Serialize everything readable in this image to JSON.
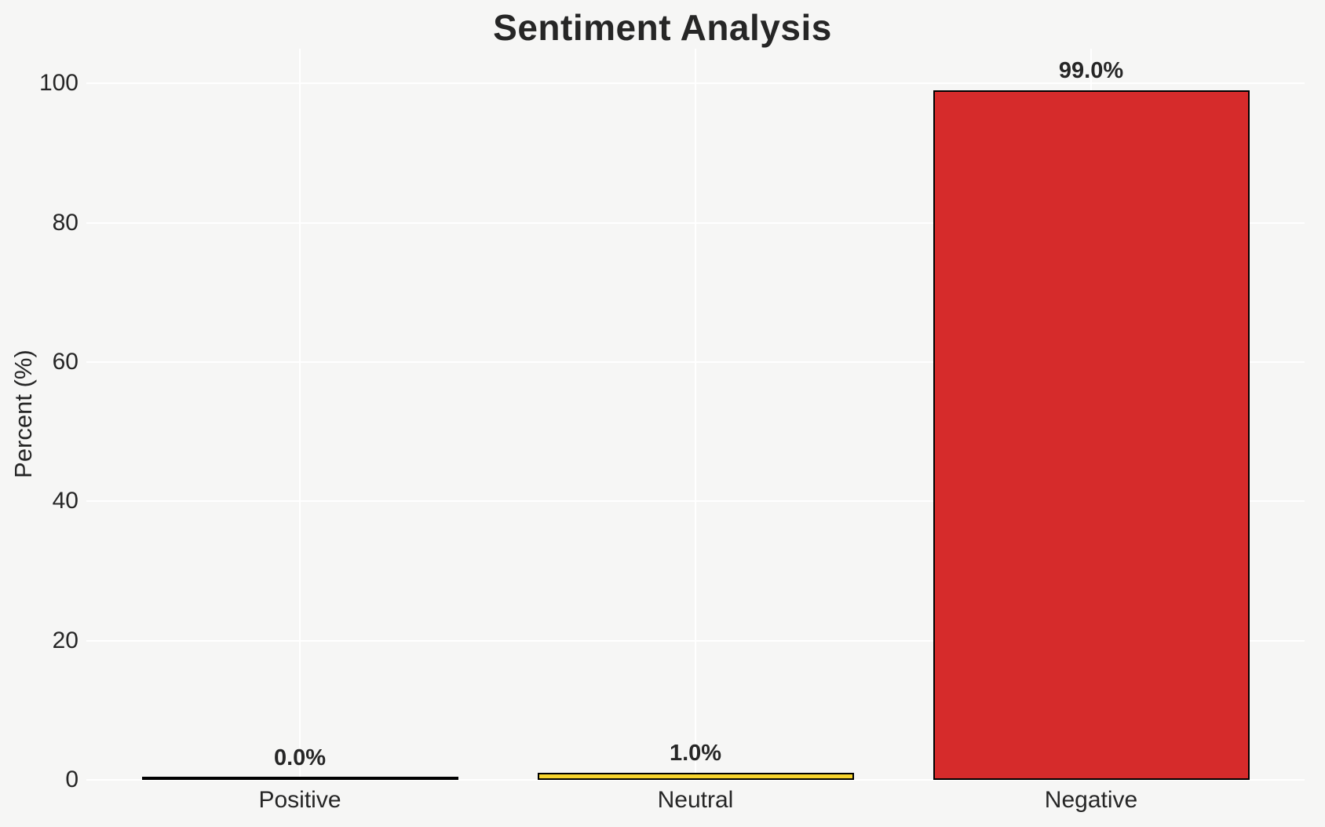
{
  "chart_data": {
    "type": "bar",
    "title": "Sentiment Analysis",
    "xlabel": "",
    "ylabel": "Percent (%)",
    "categories": [
      "Positive",
      "Neutral",
      "Negative"
    ],
    "values": [
      0.0,
      1.0,
      99.0
    ],
    "bar_value_labels": [
      "0.0%",
      "1.0%",
      "99.0%"
    ],
    "bar_colors": [
      "#000000",
      "#f6d32d",
      "#d62b2b"
    ],
    "bar_edge_color": "#000000",
    "yticks": [
      0,
      20,
      40,
      60,
      80,
      100
    ],
    "ylim": [
      0,
      105
    ],
    "grid": true,
    "legend": "none",
    "colors": {
      "background": "#f6f6f5",
      "gridline": "#ffffff",
      "text": "#262626"
    }
  }
}
